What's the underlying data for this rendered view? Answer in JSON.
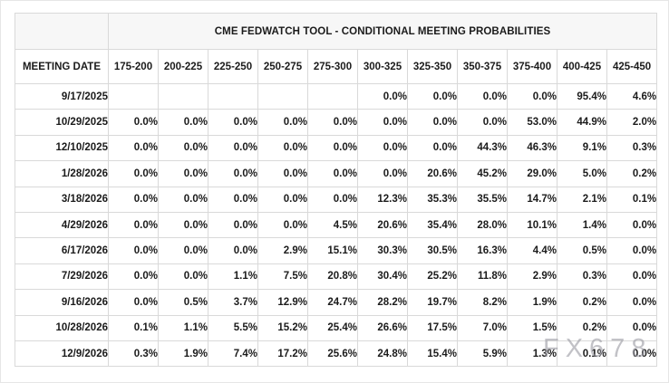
{
  "chart_data": {
    "type": "table",
    "title": "CME FEDWATCH TOOL - CONDITIONAL MEETING PROBABILITIES",
    "row_header_label": "MEETING DATE",
    "columns": [
      "175-200",
      "200-225",
      "225-250",
      "250-275",
      "275-300",
      "300-325",
      "325-350",
      "350-375",
      "375-400",
      "400-425",
      "425-450"
    ],
    "rows": [
      {
        "date": "9/17/2025",
        "values": [
          "",
          "",
          "",
          "",
          "",
          "0.0%",
          "0.0%",
          "0.0%",
          "0.0%",
          "95.4%",
          "4.6%"
        ],
        "highlight": {
          "blue": 9,
          "yellow": [
            10
          ]
        }
      },
      {
        "date": "10/29/2025",
        "values": [
          "0.0%",
          "0.0%",
          "0.0%",
          "0.0%",
          "0.0%",
          "0.0%",
          "0.0%",
          "0.0%",
          "53.0%",
          "44.9%",
          "2.0%"
        ],
        "highlight": {
          "blue": 8,
          "yellow": [
            9,
            10
          ]
        }
      },
      {
        "date": "12/10/2025",
        "values": [
          "0.0%",
          "0.0%",
          "0.0%",
          "0.0%",
          "0.0%",
          "0.0%",
          "0.0%",
          "44.3%",
          "46.3%",
          "9.1%",
          "0.3%"
        ],
        "highlight": {
          "blue": 8,
          "yellow": [
            9,
            10
          ]
        }
      },
      {
        "date": "1/28/2026",
        "values": [
          "0.0%",
          "0.0%",
          "0.0%",
          "0.0%",
          "0.0%",
          "0.0%",
          "20.6%",
          "45.2%",
          "29.0%",
          "5.0%",
          "0.2%"
        ],
        "highlight": {
          "blue": 7,
          "yellow": [
            8,
            9,
            10
          ]
        }
      },
      {
        "date": "3/18/2026",
        "values": [
          "0.0%",
          "0.0%",
          "0.0%",
          "0.0%",
          "0.0%",
          "12.3%",
          "35.3%",
          "35.5%",
          "14.7%",
          "2.1%",
          "0.1%"
        ],
        "highlight": {
          "blue": 7,
          "yellow": [
            8,
            9,
            10
          ]
        }
      },
      {
        "date": "4/29/2026",
        "values": [
          "0.0%",
          "0.0%",
          "0.0%",
          "0.0%",
          "4.5%",
          "20.6%",
          "35.4%",
          "28.0%",
          "10.1%",
          "1.4%",
          "0.0%"
        ],
        "highlight": {
          "blue": 6,
          "yellow": [
            7,
            8,
            9,
            10
          ]
        }
      },
      {
        "date": "6/17/2026",
        "values": [
          "0.0%",
          "0.0%",
          "0.0%",
          "2.9%",
          "15.1%",
          "30.3%",
          "30.5%",
          "16.3%",
          "4.4%",
          "0.5%",
          "0.0%"
        ],
        "highlight": {
          "blue": 6,
          "yellow": [
            7,
            8,
            9,
            10
          ]
        }
      },
      {
        "date": "7/29/2026",
        "values": [
          "0.0%",
          "0.0%",
          "1.1%",
          "7.5%",
          "20.8%",
          "30.4%",
          "25.2%",
          "11.8%",
          "2.9%",
          "0.3%",
          "0.0%"
        ],
        "highlight": {
          "blue": 5,
          "yellow": [
            6,
            7,
            8,
            9,
            10
          ]
        }
      },
      {
        "date": "9/16/2026",
        "values": [
          "0.0%",
          "0.5%",
          "3.7%",
          "12.9%",
          "24.7%",
          "28.2%",
          "19.7%",
          "8.2%",
          "1.9%",
          "0.2%",
          "0.0%"
        ],
        "highlight": {
          "blue": 5,
          "yellow": [
            6,
            7,
            8,
            9,
            10
          ]
        }
      },
      {
        "date": "10/28/2026",
        "values": [
          "0.1%",
          "1.1%",
          "5.5%",
          "15.2%",
          "25.4%",
          "26.6%",
          "17.5%",
          "7.0%",
          "1.5%",
          "0.2%",
          "0.0%"
        ],
        "highlight": {
          "blue": 5,
          "yellow": [
            6,
            7,
            8,
            9,
            10
          ]
        }
      },
      {
        "date": "12/9/2026",
        "values": [
          "0.3%",
          "1.9%",
          "7.4%",
          "17.2%",
          "25.6%",
          "24.8%",
          "15.4%",
          "5.9%",
          "1.3%",
          "0.1%",
          "0.0%"
        ],
        "highlight": {
          "blue": 4,
          "yellow": [
            5,
            6,
            7,
            8,
            9,
            10
          ]
        }
      }
    ],
    "layout_hints": {
      "grid": "on",
      "first_column_is_row_header": true
    }
  },
  "watermark": {
    "text": "FX678"
  },
  "colors": {
    "highlight_blue": "#c6edf8",
    "highlight_yellow": "#f5f3d5",
    "border": "#d9d9d9",
    "header_bg": "#f7f7f7",
    "text": "#1b1b1b",
    "watermark": "#9a9aa3"
  }
}
